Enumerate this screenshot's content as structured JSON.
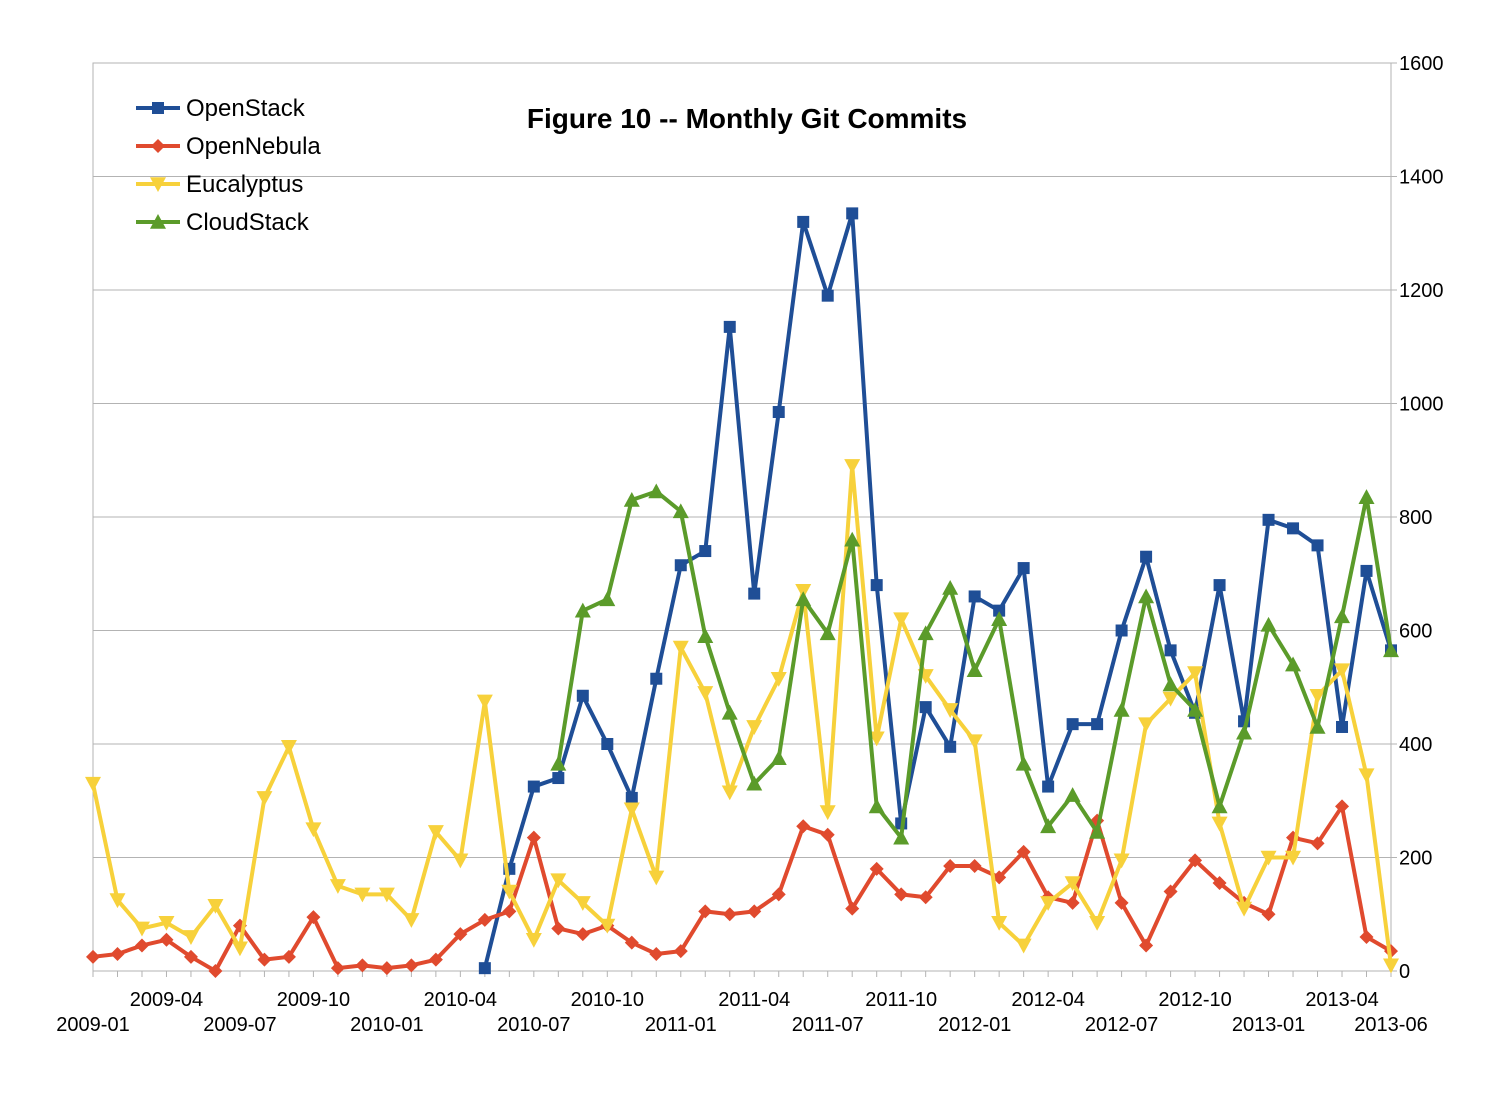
{
  "chart_data": {
    "type": "line",
    "title": "Figure 10 -- Monthly Git Commits",
    "xlabel": "",
    "ylabel": "",
    "ylim": [
      0,
      1600
    ],
    "y_ticks": [
      0,
      200,
      400,
      600,
      800,
      1000,
      1200,
      1400,
      1600
    ],
    "y_tick_labels": [
      "0",
      "200",
      "400",
      "600",
      "800",
      "1000",
      "1200",
      "1400",
      "1600"
    ],
    "y_axis_side": "right",
    "grid": true,
    "legend_position": "top-left",
    "x": [
      "2009-01",
      "2009-02",
      "2009-03",
      "2009-04",
      "2009-05",
      "2009-06",
      "2009-07",
      "2009-08",
      "2009-09",
      "2009-10",
      "2009-11",
      "2009-12",
      "2010-01",
      "2010-02",
      "2010-03",
      "2010-04",
      "2010-05",
      "2010-06",
      "2010-07",
      "2010-08",
      "2010-09",
      "2010-10",
      "2010-11",
      "2010-12",
      "2011-01",
      "2011-02",
      "2011-03",
      "2011-04",
      "2011-05",
      "2011-06",
      "2011-07",
      "2011-08",
      "2011-09",
      "2011-10",
      "2011-11",
      "2011-12",
      "2012-01",
      "2012-02",
      "2012-03",
      "2012-04",
      "2012-05",
      "2012-06",
      "2012-07",
      "2012-08",
      "2012-09",
      "2012-10",
      "2012-11",
      "2012-12",
      "2013-01",
      "2013-02",
      "2013-03",
      "2013-04",
      "2013-05",
      "2013-06"
    ],
    "x_tick_labels": [
      {
        "index": 0,
        "label": "2009-01",
        "row": 2
      },
      {
        "index": 3,
        "label": "2009-04",
        "row": 1
      },
      {
        "index": 6,
        "label": "2009-07",
        "row": 2
      },
      {
        "index": 9,
        "label": "2009-10",
        "row": 1
      },
      {
        "index": 12,
        "label": "2010-01",
        "row": 2
      },
      {
        "index": 15,
        "label": "2010-04",
        "row": 1
      },
      {
        "index": 18,
        "label": "2010-07",
        "row": 2
      },
      {
        "index": 21,
        "label": "2010-10",
        "row": 1
      },
      {
        "index": 24,
        "label": "2011-01",
        "row": 2
      },
      {
        "index": 27,
        "label": "2011-04",
        "row": 1
      },
      {
        "index": 30,
        "label": "2011-07",
        "row": 2
      },
      {
        "index": 33,
        "label": "2011-10",
        "row": 1
      },
      {
        "index": 36,
        "label": "2012-01",
        "row": 2
      },
      {
        "index": 39,
        "label": "2012-04",
        "row": 1
      },
      {
        "index": 42,
        "label": "2012-07",
        "row": 2
      },
      {
        "index": 45,
        "label": "2012-10",
        "row": 1
      },
      {
        "index": 48,
        "label": "2013-01",
        "row": 2
      },
      {
        "index": 51,
        "label": "2013-04",
        "row": 1
      },
      {
        "index": 53,
        "label": "2013-06",
        "row": 2
      }
    ],
    "series": [
      {
        "name": "OpenStack",
        "color": "#1f4e96",
        "marker": "square",
        "values": [
          null,
          null,
          null,
          null,
          null,
          null,
          null,
          null,
          null,
          null,
          null,
          null,
          null,
          null,
          null,
          null,
          5,
          180,
          325,
          340,
          485,
          400,
          305,
          515,
          715,
          740,
          1135,
          665,
          985,
          1320,
          1190,
          1335,
          680,
          260,
          465,
          395,
          660,
          635,
          710,
          325,
          435,
          435,
          600,
          730,
          565,
          455,
          680,
          440,
          795,
          780,
          750,
          430,
          705,
          565
        ]
      },
      {
        "name": "OpenNebula",
        "color": "#e04a2e",
        "marker": "diamond",
        "values": [
          25,
          30,
          45,
          55,
          25,
          0,
          80,
          20,
          25,
          95,
          5,
          10,
          5,
          10,
          20,
          65,
          90,
          105,
          235,
          75,
          65,
          80,
          50,
          30,
          35,
          105,
          100,
          105,
          135,
          255,
          240,
          110,
          180,
          135,
          130,
          185,
          185,
          165,
          210,
          130,
          120,
          265,
          120,
          45,
          140,
          195,
          155,
          120,
          100,
          235,
          225,
          290,
          60,
          35
        ]
      },
      {
        "name": "Eucalyptus",
        "color": "#f7d13b",
        "marker": "triangle-down",
        "values": [
          330,
          125,
          75,
          85,
          60,
          115,
          40,
          305,
          395,
          250,
          150,
          135,
          135,
          90,
          245,
          195,
          475,
          140,
          55,
          160,
          120,
          80,
          285,
          165,
          570,
          490,
          315,
          430,
          515,
          670,
          280,
          890,
          410,
          620,
          520,
          460,
          405,
          85,
          45,
          120,
          155,
          85,
          195,
          435,
          480,
          525,
          260,
          110,
          200,
          200,
          485,
          530,
          345,
          10
        ]
      },
      {
        "name": "CloudStack",
        "color": "#5b9b2a",
        "marker": "triangle-up",
        "values": [
          null,
          null,
          null,
          null,
          null,
          null,
          null,
          null,
          null,
          null,
          null,
          null,
          null,
          null,
          null,
          null,
          null,
          null,
          null,
          365,
          635,
          655,
          830,
          845,
          810,
          590,
          455,
          330,
          375,
          655,
          595,
          760,
          290,
          235,
          595,
          675,
          530,
          620,
          365,
          255,
          310,
          245,
          460,
          660,
          505,
          460,
          290,
          420,
          610,
          540,
          430,
          625,
          835,
          565
        ]
      }
    ]
  }
}
